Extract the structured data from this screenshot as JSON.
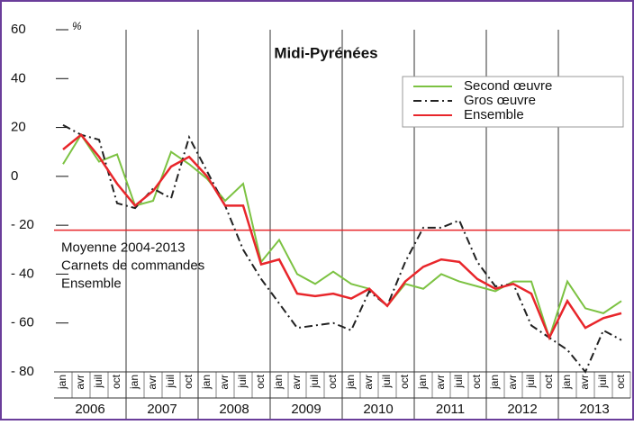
{
  "chart_data": {
    "type": "line",
    "title": "Midi-Pyrénées",
    "y_unit": "%",
    "categories": [
      "jan",
      "avr",
      "juil",
      "oct",
      "jan",
      "avr",
      "juil",
      "oct",
      "jan",
      "avr",
      "juil",
      "oct",
      "jan",
      "avr",
      "juil",
      "oct",
      "jan",
      "avr",
      "juil",
      "oct",
      "jan",
      "avr",
      "juil",
      "oct",
      "jan",
      "avr",
      "juil",
      "oct",
      "jan",
      "avr",
      "juil",
      "oct"
    ],
    "years": [
      "2006",
      "2007",
      "2008",
      "2009",
      "2010",
      "2011",
      "2012",
      "2013"
    ],
    "series": [
      {
        "name": "Second œuvre",
        "color": "#7cc242",
        "dash": false,
        "values": [
          5,
          17,
          6,
          9,
          -12,
          -10,
          10,
          5,
          -1,
          -10,
          -3,
          -35,
          -26,
          -40,
          -44,
          -39,
          -44,
          -46,
          -53,
          -44,
          -46,
          -40,
          -43,
          -45,
          -47,
          -43,
          -43,
          -66,
          -43,
          -54,
          -56,
          -51
        ]
      },
      {
        "name": "Gros œuvre",
        "color": "#222222",
        "dash": true,
        "values": [
          21,
          17,
          15,
          -11,
          -13,
          -5,
          -9,
          16,
          2,
          -12,
          -30,
          -42,
          -52,
          -62,
          -61,
          -60,
          -63,
          -47,
          -53,
          -35,
          -21,
          -21,
          -18,
          -35,
          -45,
          -44,
          -61,
          -66,
          -71,
          -80,
          -63,
          -67
        ]
      },
      {
        "name": "Ensemble",
        "color": "#e8262b",
        "dash": false,
        "values": [
          11,
          17,
          8,
          -3,
          -12,
          -6,
          4,
          8,
          0,
          -12,
          -12,
          -36,
          -34,
          -48,
          -49,
          -48,
          -50,
          -46,
          -53,
          -43,
          -37,
          -34,
          -35,
          -42,
          -46,
          -44,
          -48,
          -66,
          -51,
          -62,
          -58,
          -56
        ]
      }
    ],
    "ylim": [
      -80,
      60
    ],
    "yticks": [
      {
        "value": -80,
        "label": "- 80"
      },
      {
        "value": -60,
        "label": "- 60"
      },
      {
        "value": -40,
        "label": "- 40"
      },
      {
        "value": -20,
        "label": "- 20"
      },
      0,
      20,
      40,
      60
    ],
    "reference_line": {
      "value": -22,
      "color": "#e8262b",
      "label": [
        "Moyenne 2004-2013",
        "Carnets de commandes",
        "Ensemble"
      ]
    },
    "legend": "upper right",
    "frame_color": "#6a3d9a"
  }
}
